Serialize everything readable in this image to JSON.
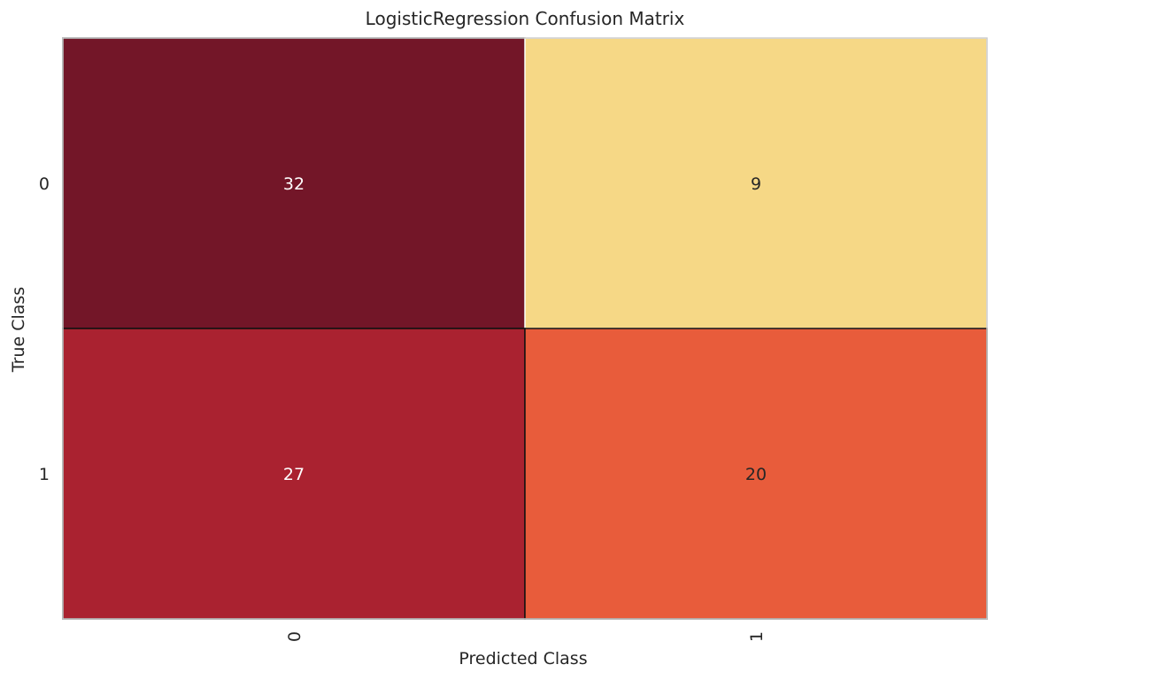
{
  "chart_data": {
    "type": "heatmap",
    "title": "LogisticRegression Confusion Matrix",
    "xlabel": "Predicted Class",
    "ylabel": "True Class",
    "x_categories": [
      "0",
      "1"
    ],
    "y_categories": [
      "0",
      "1"
    ],
    "values": [
      [
        32,
        9
      ],
      [
        27,
        20
      ]
    ],
    "cell_colors": [
      [
        "#731628",
        "#f6d886"
      ],
      [
        "#aa2230",
        "#e85c3b"
      ]
    ],
    "cell_text_colors": [
      [
        "#ffffff",
        "#262626"
      ],
      [
        "#ffffff",
        "#262626"
      ]
    ],
    "grid": false,
    "colorbar": false
  }
}
